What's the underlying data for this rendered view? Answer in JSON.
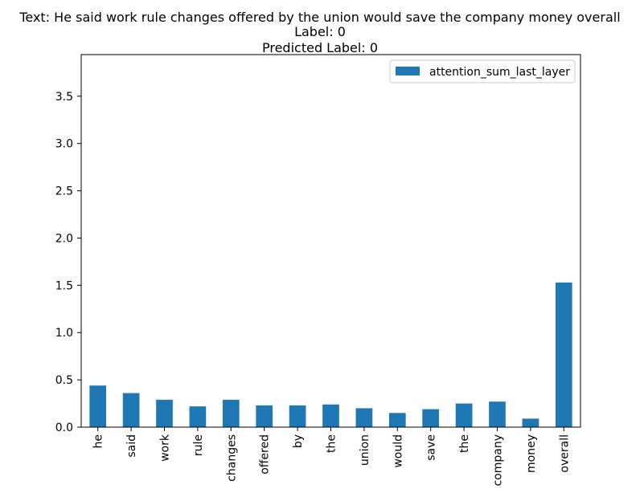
{
  "chart_data": {
    "type": "bar",
    "title_lines": [
      "Text: He said work rule changes offered by the union would save the company money overall",
      "Label: 0",
      "Predicted Label: 0"
    ],
    "xlabel": "",
    "ylabel": "",
    "categories": [
      "he",
      "said",
      "work",
      "rule",
      "changes",
      "offered",
      "by",
      "the",
      "union",
      "would",
      "save",
      "the",
      "company",
      "money",
      "overall"
    ],
    "series": [
      {
        "name": "attention_sum_last_layer",
        "color": "#1f77b4",
        "values": [
          0.44,
          0.36,
          0.29,
          0.22,
          0.29,
          0.23,
          0.23,
          0.24,
          0.2,
          0.15,
          0.19,
          0.25,
          0.27,
          0.09,
          1.53
        ]
      }
    ],
    "ylim": [
      0,
      3.94
    ],
    "yticks": [
      0.0,
      0.5,
      1.0,
      1.5,
      2.0,
      2.5,
      3.0,
      3.5
    ],
    "ytick_labels": [
      "0.0",
      "0.5",
      "1.0",
      "1.5",
      "2.0",
      "2.5",
      "3.0",
      "3.5"
    ],
    "grid": false,
    "legend_position": "top-right"
  }
}
